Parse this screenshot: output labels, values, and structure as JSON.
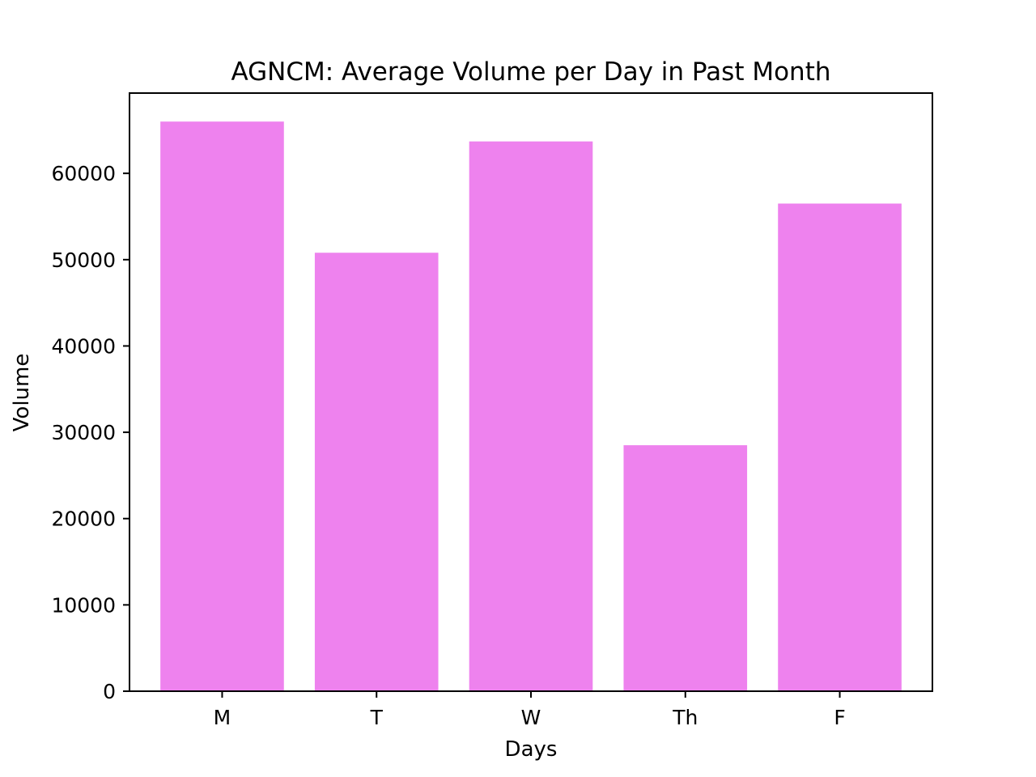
{
  "chart_data": {
    "type": "bar",
    "title": "AGNCM: Average Volume per Day in Past Month",
    "xlabel": "Days",
    "ylabel": "Volume",
    "categories": [
      "M",
      "T",
      "W",
      "Th",
      "F"
    ],
    "values": [
      66000,
      50800,
      63700,
      28500,
      56500
    ],
    "ylim": [
      0,
      69300
    ],
    "yticks": [
      0,
      10000,
      20000,
      30000,
      40000,
      50000,
      60000
    ],
    "bar_color": "#ee82ee",
    "grid": false,
    "legend": "none"
  }
}
